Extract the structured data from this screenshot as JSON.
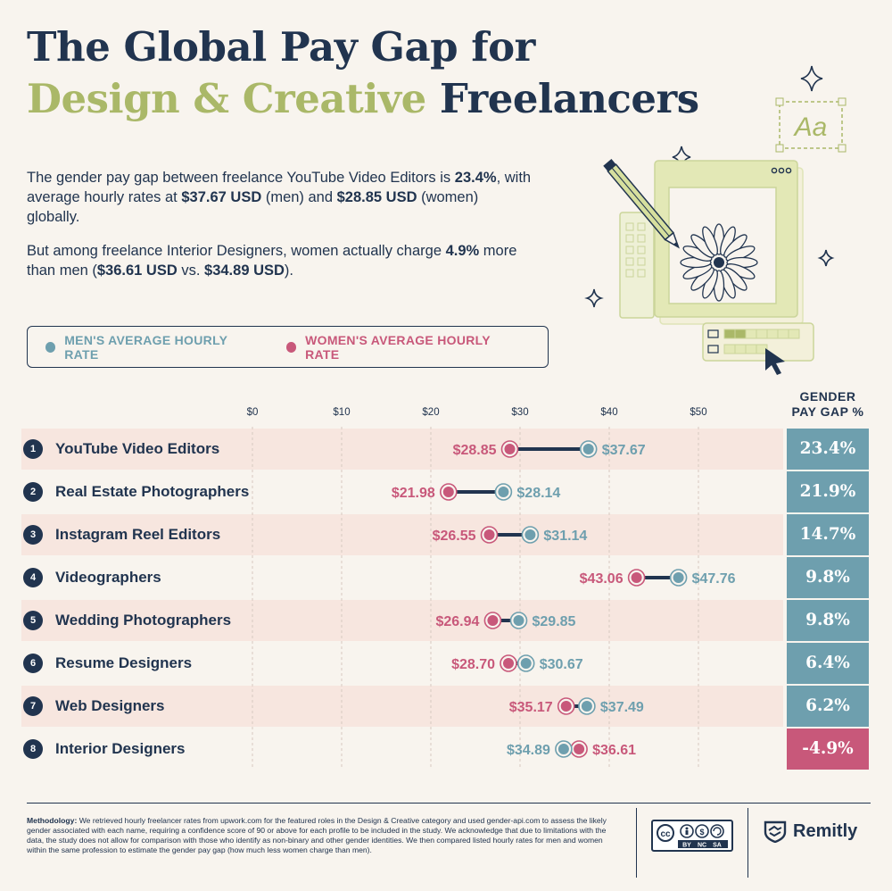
{
  "title": {
    "line1": "The Global Pay Gap for",
    "line2_accent": "Design & Creative",
    "line2_rest": " Freelancers"
  },
  "intro": {
    "p1_a": "The gender pay gap between freelance YouTube Video Editors is ",
    "p1_b": "23.4%",
    "p1_c": ", with average hourly rates at ",
    "p1_d": "$37.67 USD",
    "p1_e": " (men) and ",
    "p1_f": "$28.85 USD",
    "p1_g": " (women) globally.",
    "p2_a": "But among freelance Interior Designers, women actually charge ",
    "p2_b": "4.9%",
    "p2_c": " more than men (",
    "p2_d": "$36.61 USD",
    "p2_e": " vs. ",
    "p2_f": "$34.89 USD",
    "p2_g": ")."
  },
  "illustration": {
    "font_sample": "Aa"
  },
  "legend": {
    "men": "MEN'S AVERAGE HOURLY RATE",
    "women": "WOMEN'S AVERAGE HOURLY RATE"
  },
  "colors": {
    "men": "#6e9fae",
    "women": "#c8587a",
    "navy": "#21344f",
    "accent": "#aab868",
    "gap_positive": "#6e9fae",
    "gap_negative": "#c8587a",
    "row_shade": "#f7e6df",
    "background": "#f8f4ee"
  },
  "gap_header": {
    "line1": "GENDER",
    "line2": "PAY GAP %"
  },
  "chart_data": {
    "type": "dumbbell",
    "x_ticks": [
      "$0",
      "$10",
      "$20",
      "$30",
      "$40",
      "$50"
    ],
    "xlim": [
      0,
      50
    ],
    "series": [
      {
        "name": "MEN'S AVERAGE HOURLY RATE"
      },
      {
        "name": "WOMEN'S AVERAGE HOURLY RATE"
      }
    ],
    "rows": [
      {
        "rank": "1",
        "role": "YouTube Video Editors",
        "men": 37.67,
        "women": 28.85,
        "men_label": "$37.67",
        "women_label": "$28.85",
        "gap": "23.4%",
        "gap_value": 23.4
      },
      {
        "rank": "2",
        "role": "Real Estate Photographers",
        "men": 28.14,
        "women": 21.98,
        "men_label": "$28.14",
        "women_label": "$21.98",
        "gap": "21.9%",
        "gap_value": 21.9
      },
      {
        "rank": "3",
        "role": "Instagram Reel Editors",
        "men": 31.14,
        "women": 26.55,
        "men_label": "$31.14",
        "women_label": "$26.55",
        "gap": "14.7%",
        "gap_value": 14.7
      },
      {
        "rank": "4",
        "role": "Videographers",
        "men": 47.76,
        "women": 43.06,
        "men_label": "$47.76",
        "women_label": "$43.06",
        "gap": "9.8%",
        "gap_value": 9.8
      },
      {
        "rank": "5",
        "role": "Wedding Photographers",
        "men": 29.85,
        "women": 26.94,
        "men_label": "$29.85",
        "women_label": "$26.94",
        "gap": "9.8%",
        "gap_value": 9.8
      },
      {
        "rank": "6",
        "role": "Resume Designers",
        "men": 30.67,
        "women": 28.7,
        "men_label": "$30.67",
        "women_label": "$28.70",
        "gap": "6.4%",
        "gap_value": 6.4
      },
      {
        "rank": "7",
        "role": "Web Designers",
        "men": 37.49,
        "women": 35.17,
        "men_label": "$37.49",
        "women_label": "$35.17",
        "gap": "6.2%",
        "gap_value": 6.2
      },
      {
        "rank": "8",
        "role": "Interior Designers",
        "men": 34.89,
        "women": 36.61,
        "men_label": "$34.89",
        "women_label": "$36.61",
        "gap": "-4.9%",
        "gap_value": -4.9
      }
    ]
  },
  "methodology": {
    "label": "Methodology:",
    "text": " We retrieved hourly freelancer rates from upwork.com for the featured roles in the Design & Creative category and used gender-api.com to assess the likely gender associated with each name, requiring a confidence score of 90 or above for each profile to be included in the study. We acknowledge that due to limitations with the data, the study does not allow for comparison with those who identify as non-binary and other gender identities. We then compared listed hourly rates for men and women within the same profession to estimate the gender pay gap (how much less women charge than men)."
  },
  "license": {
    "cc": "cc",
    "by": "BY",
    "nc": "NC",
    "sa": "SA"
  },
  "brand": {
    "name": "Remitly"
  }
}
